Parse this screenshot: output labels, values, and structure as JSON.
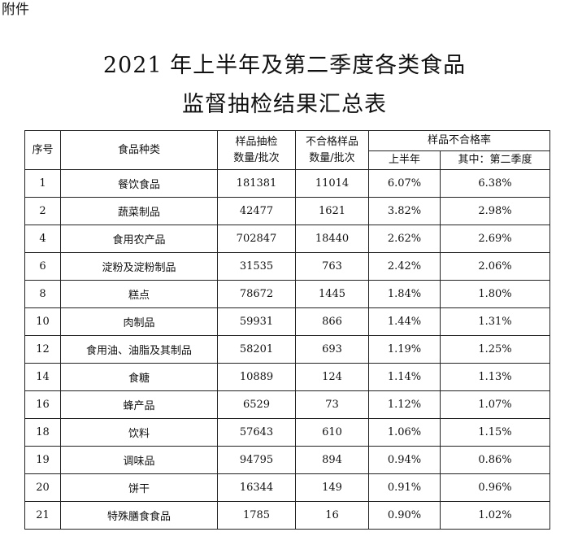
{
  "attachment_label": "附件",
  "title_line1": "2021 年上半年及第二季度各类食品",
  "title_line2": "监督抽检结果汇总表",
  "headers": {
    "seq": "序号",
    "category": "食品种类",
    "samples_line1": "样品抽检",
    "samples_line2": "数量/批次",
    "failed_line1": "不合格样品",
    "failed_line2": "数量/批次",
    "rate_group": "样品不合格率",
    "rate_h1": "上半年",
    "rate_q2": "其中：第二季度"
  },
  "rows": [
    {
      "seq": "1",
      "category": "餐饮食品",
      "samples": "181381",
      "failed": "11014",
      "rate_h1": "6.07%",
      "rate_q2": "6.38%"
    },
    {
      "seq": "2",
      "category": "蔬菜制品",
      "samples": "42477",
      "failed": "1621",
      "rate_h1": "3.82%",
      "rate_q2": "2.98%"
    },
    {
      "seq": "4",
      "category": "食用农产品",
      "samples": "702847",
      "failed": "18440",
      "rate_h1": "2.62%",
      "rate_q2": "2.69%"
    },
    {
      "seq": "6",
      "category": "淀粉及淀粉制品",
      "samples": "31535",
      "failed": "763",
      "rate_h1": "2.42%",
      "rate_q2": "2.06%"
    },
    {
      "seq": "8",
      "category": "糕点",
      "samples": "78672",
      "failed": "1445",
      "rate_h1": "1.84%",
      "rate_q2": "1.80%"
    },
    {
      "seq": "10",
      "category": "肉制品",
      "samples": "59931",
      "failed": "866",
      "rate_h1": "1.44%",
      "rate_q2": "1.31%"
    },
    {
      "seq": "12",
      "category": "食用油、油脂及其制品",
      "samples": "58201",
      "failed": "693",
      "rate_h1": "1.19%",
      "rate_q2": "1.25%"
    },
    {
      "seq": "14",
      "category": "食糖",
      "samples": "10889",
      "failed": "124",
      "rate_h1": "1.14%",
      "rate_q2": "1.13%"
    },
    {
      "seq": "16",
      "category": "蜂产品",
      "samples": "6529",
      "failed": "73",
      "rate_h1": "1.12%",
      "rate_q2": "1.07%"
    },
    {
      "seq": "18",
      "category": "饮料",
      "samples": "57643",
      "failed": "610",
      "rate_h1": "1.06%",
      "rate_q2": "1.15%"
    },
    {
      "seq": "19",
      "category": "调味品",
      "samples": "94795",
      "failed": "894",
      "rate_h1": "0.94%",
      "rate_q2": "0.86%"
    },
    {
      "seq": "20",
      "category": "饼干",
      "samples": "16344",
      "failed": "149",
      "rate_h1": "0.91%",
      "rate_q2": "0.96%"
    },
    {
      "seq": "21",
      "category": "特殊膳食食品",
      "samples": "1785",
      "failed": "16",
      "rate_h1": "0.90%",
      "rate_q2": "1.02%"
    }
  ]
}
